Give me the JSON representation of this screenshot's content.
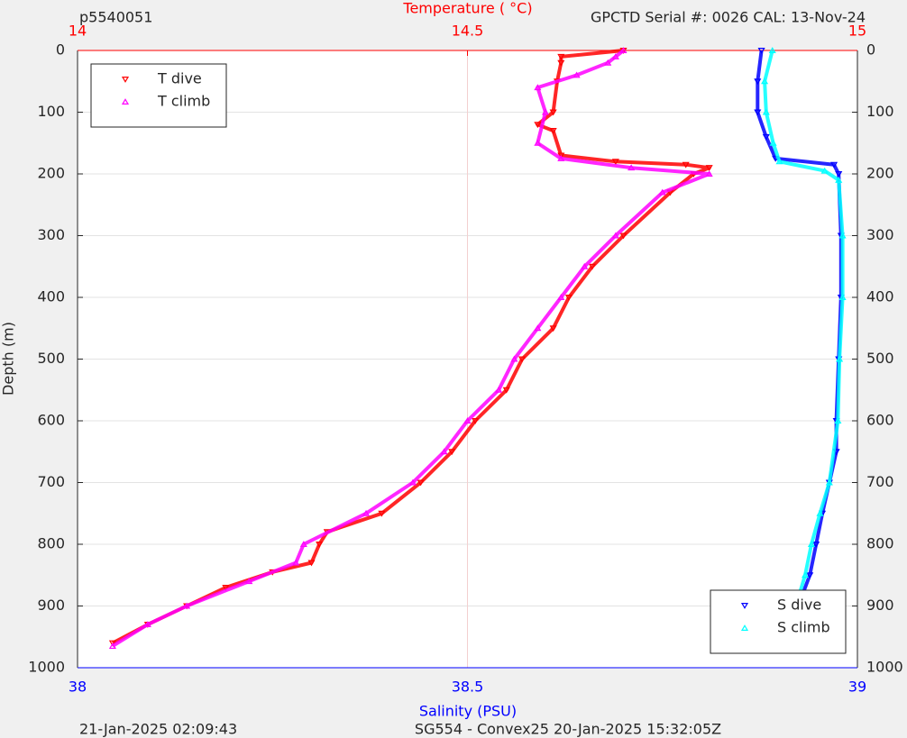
{
  "chart_data": {
    "type": "scatter",
    "title_left": "p5540051",
    "title_right": "GPCTD Serial #: 0026 CAL: 13-Nov-24",
    "x2label": "Temperature (    °C)",
    "xlabel": "Salinity (PSU)",
    "ylabel": "Depth (m)",
    "footer_left": "21-Jan-2025 02:09:43",
    "footer_center": "SG554 - Convex25 20-Jan-2025 15:32:05Z",
    "xlim": [
      38,
      39
    ],
    "xticks": [
      38,
      38.5,
      39
    ],
    "xcolor": "#0000ff",
    "x2lim": [
      14,
      15
    ],
    "x2ticks": [
      14,
      14.5,
      15
    ],
    "x2color": "#ff0000",
    "ylim": [
      0,
      1000
    ],
    "y_reversed": true,
    "yticks": [
      0,
      100,
      200,
      300,
      400,
      500,
      600,
      700,
      800,
      900,
      1000
    ],
    "grid": true,
    "series": [
      {
        "name": "T dive",
        "color": "#ff0000",
        "marker": "down",
        "axis": "x2",
        "legend": "upper left",
        "y": [
          0,
          10,
          20,
          50,
          100,
          120,
          130,
          170,
          180,
          185,
          190,
          200,
          230,
          300,
          350,
          400,
          450,
          500,
          550,
          600,
          650,
          700,
          750,
          780,
          800,
          830,
          845,
          870,
          900,
          930,
          960
        ],
        "x": [
          14.7,
          14.62,
          14.62,
          14.615,
          14.61,
          14.59,
          14.61,
          14.62,
          14.69,
          14.78,
          14.81,
          14.79,
          14.76,
          14.7,
          14.66,
          14.63,
          14.61,
          14.57,
          14.55,
          14.51,
          14.48,
          14.44,
          14.39,
          14.32,
          14.31,
          14.3,
          14.25,
          14.19,
          14.14,
          14.09,
          14.045
        ]
      },
      {
        "name": "T climb",
        "color": "#ff00ff",
        "marker": "up",
        "axis": "x2",
        "legend": "upper left",
        "y": [
          0,
          10,
          20,
          40,
          60,
          100,
          150,
          175,
          190,
          200,
          230,
          300,
          350,
          400,
          450,
          500,
          550,
          600,
          650,
          700,
          750,
          800,
          830,
          860,
          900,
          930,
          965
        ],
        "x": [
          14.7,
          14.69,
          14.68,
          14.64,
          14.59,
          14.6,
          14.59,
          14.62,
          14.71,
          14.81,
          14.75,
          14.69,
          14.65,
          14.62,
          14.59,
          14.56,
          14.54,
          14.5,
          14.47,
          14.43,
          14.37,
          14.29,
          14.28,
          14.22,
          14.14,
          14.09,
          14.045
        ]
      },
      {
        "name": "S dive",
        "color": "#0000ff",
        "marker": "down",
        "axis": "x",
        "legend": "lower right",
        "y": [
          0,
          50,
          100,
          140,
          175,
          185,
          200,
          300,
          400,
          500,
          600,
          650,
          700,
          750,
          800,
          850,
          900,
          960
        ],
        "x": [
          38.877,
          38.872,
          38.872,
          38.883,
          38.895,
          38.97,
          38.976,
          38.979,
          38.979,
          38.976,
          38.973,
          38.973,
          38.964,
          38.955,
          38.947,
          38.939,
          38.924,
          38.909
        ]
      },
      {
        "name": "S climb",
        "color": "#00ffff",
        "marker": "up",
        "axis": "x",
        "legend": "lower right",
        "y": [
          0,
          50,
          100,
          150,
          180,
          195,
          210,
          300,
          400,
          500,
          600,
          700,
          750,
          800,
          850,
          900,
          965
        ],
        "x": [
          38.891,
          38.881,
          38.883,
          38.892,
          38.9,
          38.958,
          38.976,
          38.981,
          38.981,
          38.977,
          38.975,
          38.964,
          38.952,
          38.941,
          38.933,
          38.921,
          38.906
        ]
      }
    ]
  }
}
